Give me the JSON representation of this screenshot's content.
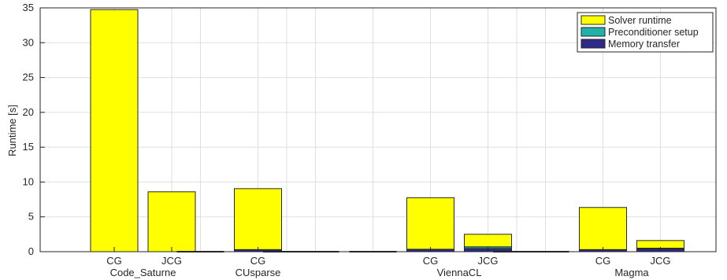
{
  "chart_data": {
    "type": "bar",
    "stacked": true,
    "ylabel": "Runtime [s]",
    "ylim": [
      0,
      35
    ],
    "yticks": [
      0,
      5,
      10,
      15,
      20,
      25,
      30,
      35
    ],
    "grid": true,
    "legend_position": "top-right",
    "x_ticks": [
      "CG",
      "JCG",
      "CG",
      "CG",
      "JCG",
      "CG",
      "JCG"
    ],
    "group_labels": [
      "Code_Saturne",
      "CUsparse",
      "ViennaCL",
      "Magma"
    ],
    "series": [
      {
        "name": "Solver runtime",
        "color": "#ffff00"
      },
      {
        "name": "Preconditioner setup",
        "color": "#20b2aa"
      },
      {
        "name": "Memory transfer",
        "color": "#2e2a87"
      }
    ],
    "bars": [
      {
        "group": "Code_Saturne",
        "label": "CG",
        "memory_transfer": 0.0,
        "preconditioner_setup": 0.0,
        "solver_runtime": 34.75
      },
      {
        "group": "Code_Saturne",
        "label": "JCG",
        "memory_transfer": 0.0,
        "preconditioner_setup": 0.0,
        "solver_runtime": 8.6
      },
      {
        "group": "CUsparse",
        "label": "CG",
        "memory_transfer": 0.3,
        "preconditioner_setup": 0.0,
        "solver_runtime": 8.75
      },
      {
        "group": "ViennaCL",
        "label": "CG",
        "memory_transfer": 0.35,
        "preconditioner_setup": 0.0,
        "solver_runtime": 7.4
      },
      {
        "group": "ViennaCL",
        "label": "JCG",
        "memory_transfer": 0.45,
        "preconditioner_setup": 0.25,
        "solver_runtime": 1.8
      },
      {
        "group": "Magma",
        "label": "CG",
        "memory_transfer": 0.3,
        "preconditioner_setup": 0.0,
        "solver_runtime": 6.05
      },
      {
        "group": "Magma",
        "label": "JCG",
        "memory_transfer": 0.4,
        "preconditioner_setup": 0.1,
        "solver_runtime": 1.1
      }
    ],
    "empty_slots": 7
  }
}
